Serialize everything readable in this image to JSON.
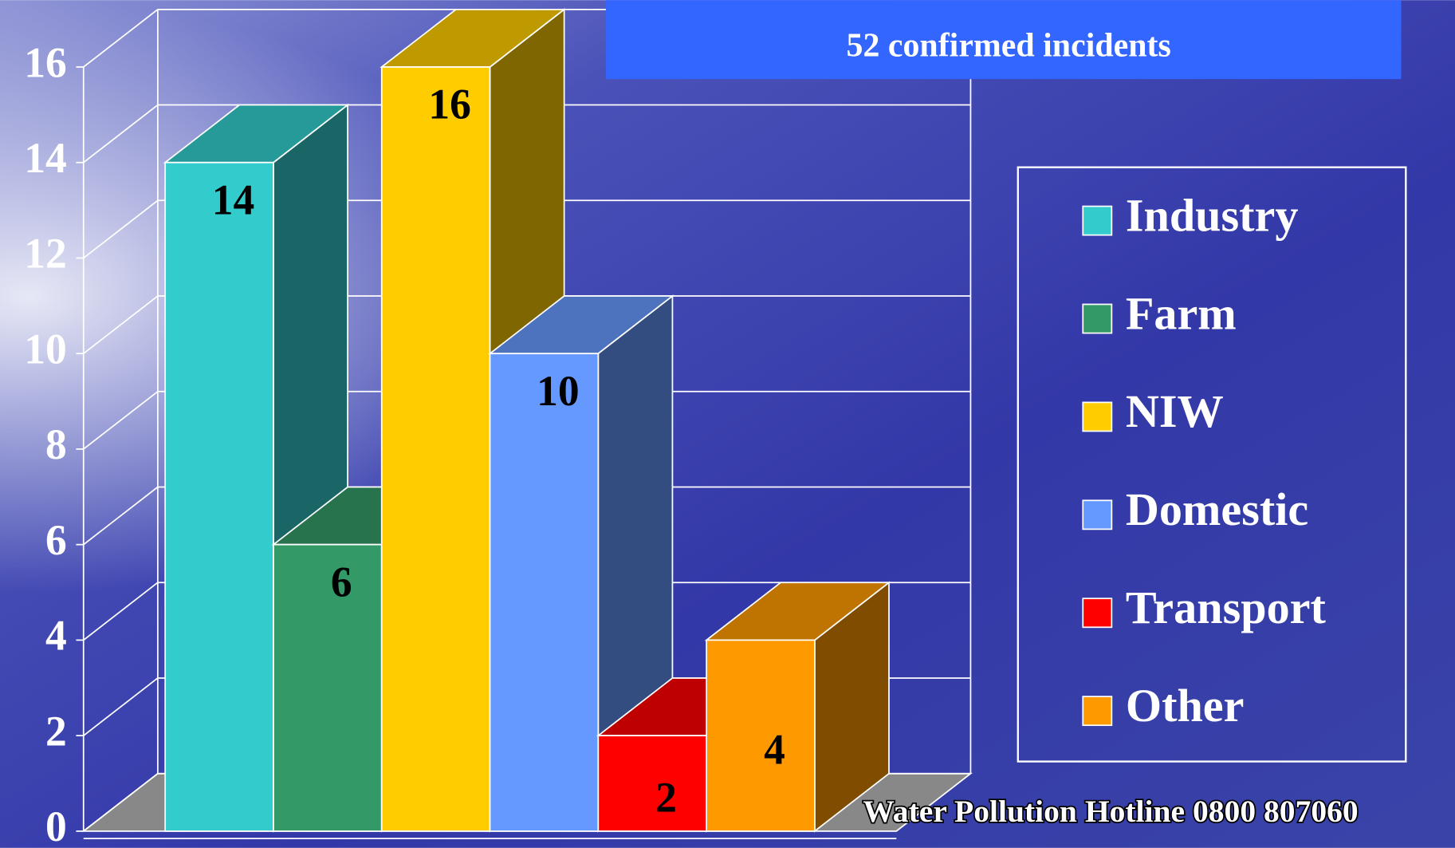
{
  "chart_data": {
    "type": "bar3d",
    "title": "52 confirmed incidents",
    "categories": [
      "Industry",
      "Farm",
      "NIW",
      "Domestic",
      "Transport",
      "Other"
    ],
    "values": [
      14,
      6,
      16,
      10,
      2,
      4
    ],
    "colors": [
      "#33CCCC",
      "#339966",
      "#FFCC00",
      "#6699FF",
      "#FF0000",
      "#FF9900"
    ],
    "ylim": [
      0,
      16
    ],
    "yticks": [
      0,
      2,
      4,
      6,
      8,
      10,
      12,
      14,
      16
    ],
    "grid": true,
    "legend": "right",
    "footer": "Water Pollution Hotline 0800 807060"
  }
}
